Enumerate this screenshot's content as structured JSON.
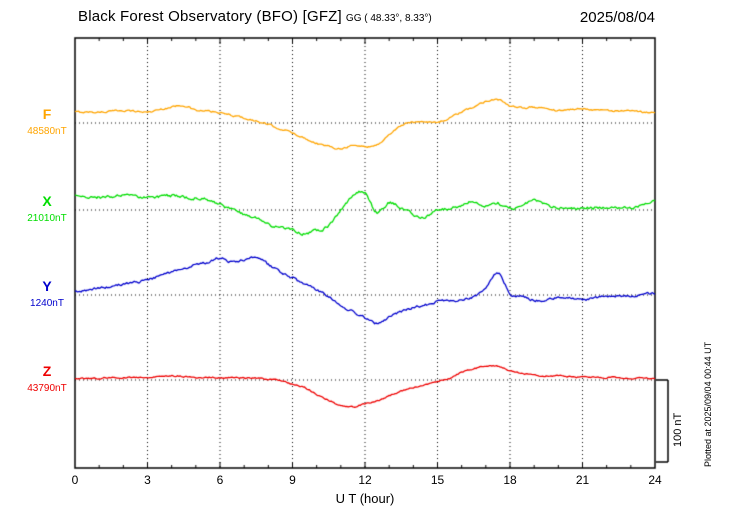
{
  "header": {
    "title": "Black Forest Observatory (BFO)  [GFZ]",
    "subtitle": "GG ( 48.33°,  8.33°)",
    "date": "2025/08/04"
  },
  "side": {
    "plotted_at": "Plotted at 2025/09/04 00:44 UT"
  },
  "chart_data": {
    "type": "line",
    "title": "Black Forest Observatory (BFO)  [GFZ]",
    "subtitle": "GG ( 48.33°,  8.33°)",
    "date": "2025/08/04",
    "xlabel": "U T (hour)",
    "xlim": [
      0,
      24
    ],
    "x_ticks": [
      0,
      3,
      6,
      9,
      12,
      15,
      18,
      21,
      24
    ],
    "grid": "dotted vertical at 3h intervals, dotted horizontal baseline per trace",
    "legend_position": "left baseline labels",
    "sample_interval_hours": 0.5,
    "scale_bar": {
      "label": "100 nT",
      "nT": 100
    },
    "series": [
      {
        "name": "F",
        "baseline_label": "48580nT",
        "color": "#FFA500",
        "noise_nT": 1.0,
        "values_nT": [
          13,
          13,
          13,
          14,
          15,
          14,
          13,
          16,
          19,
          21,
          15,
          14,
          12,
          9,
          6,
          2,
          -2,
          -7,
          -12,
          -18,
          -24,
          -28,
          -30,
          -27,
          -28,
          -26,
          -14,
          -3,
          1,
          2,
          1,
          6,
          13,
          19,
          26,
          28,
          20,
          18,
          19,
          17,
          15,
          16,
          17,
          16,
          15,
          14,
          14,
          13,
          13
        ]
      },
      {
        "name": "X",
        "baseline_label": "21010nT",
        "color": "#00DD00",
        "noise_nT": 1.6,
        "values_nT": [
          17,
          16,
          15,
          16,
          17,
          16,
          15,
          16,
          17,
          15,
          14,
          12,
          6,
          0,
          -5,
          -9,
          -17,
          -21,
          -24,
          -28,
          -24,
          -19,
          0,
          17,
          20,
          -3,
          9,
          2,
          -5,
          -8,
          0,
          2,
          5,
          11,
          5,
          8,
          2,
          5,
          11,
          7,
          2,
          3,
          2,
          3,
          3,
          3,
          2,
          7,
          12
        ]
      },
      {
        "name": "Y",
        "baseline_label": "1240nT",
        "color": "#0000CD",
        "noise_nT": 1.4,
        "values_nT": [
          3,
          6,
          8,
          10,
          13,
          15,
          18,
          22,
          27,
          32,
          36,
          39,
          44,
          39,
          42,
          46,
          36,
          27,
          20,
          13,
          6,
          -2,
          -12,
          -20,
          -27,
          -34,
          -27,
          -20,
          -15,
          -12,
          -8,
          -7,
          -6,
          -3,
          8,
          27,
          2,
          -2,
          -6,
          -5,
          -3,
          -4,
          -5,
          -4,
          -2,
          -2,
          -1,
          1,
          2
        ]
      },
      {
        "name": "Z",
        "baseline_label": "43790nT",
        "color": "#EE0000",
        "noise_nT": 0.8,
        "values_nT": [
          2,
          2,
          2,
          3,
          3,
          3,
          3,
          4,
          5,
          4,
          3,
          3,
          3,
          3,
          2,
          2,
          1,
          -1,
          -5,
          -9,
          -17,
          -24,
          -30,
          -32,
          -28,
          -25,
          -19,
          -13,
          -9,
          -6,
          -2,
          2,
          9,
          13,
          17,
          16,
          11,
          8,
          6,
          5,
          5,
          4,
          3,
          3,
          3,
          3,
          2,
          2,
          2
        ]
      }
    ]
  }
}
